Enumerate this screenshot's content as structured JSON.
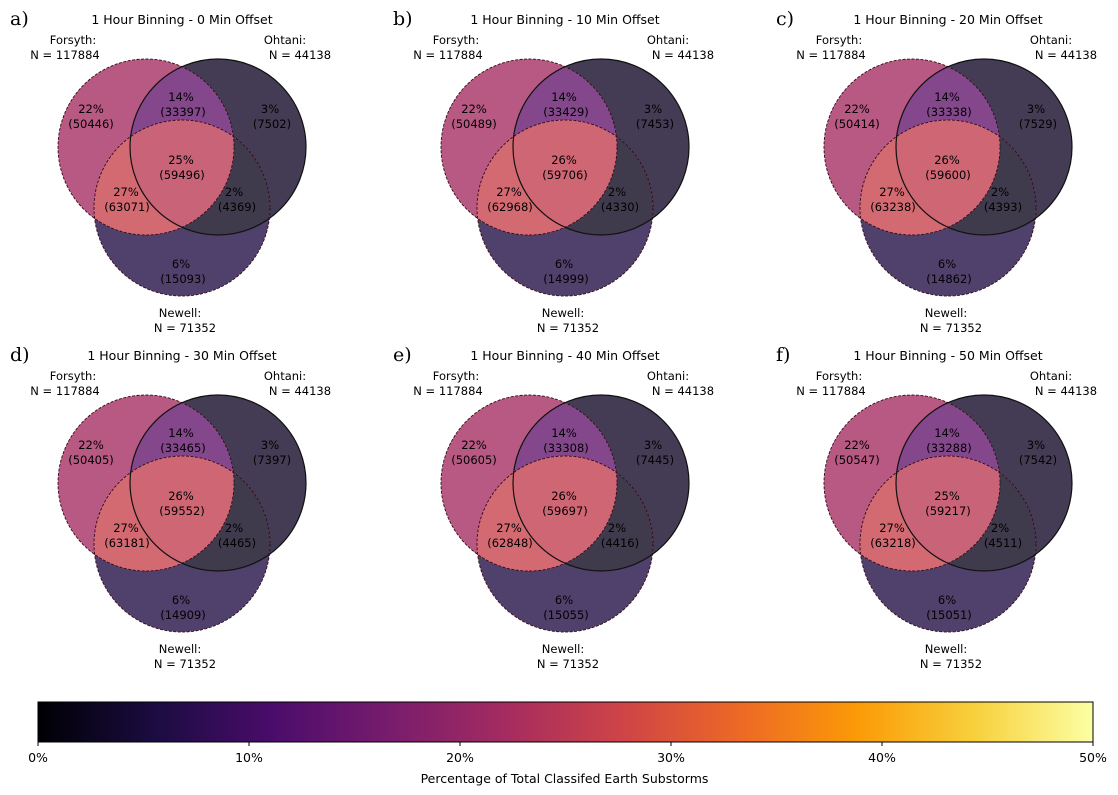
{
  "chart_data": {
    "type": "venn3",
    "panels": [
      {
        "letter": "a)",
        "title": "1 Hour Binning - 0 Min Offset",
        "sets": [
          {
            "name": "Forsyth:",
            "n_label": "N = 117884"
          },
          {
            "name": "Ohtani:",
            "n_label": "N = 44138"
          },
          {
            "name": "Newell:",
            "n_label": "N = 71352"
          }
        ],
        "regions": {
          "forsyth_only": {
            "pct": "22%",
            "count": "(50446)"
          },
          "ohtani_only": {
            "pct": "3%",
            "count": "(7502)"
          },
          "forsyth_ohtani": {
            "pct": "14%",
            "count": "(33397)"
          },
          "all_three": {
            "pct": "25%",
            "count": "(59496)"
          },
          "forsyth_newell": {
            "pct": "27%",
            "count": "(63071)"
          },
          "ohtani_newell": {
            "pct": "2%",
            "count": "(4369)"
          },
          "newell_only": {
            "pct": "6%",
            "count": "(15093)"
          }
        }
      },
      {
        "letter": "b)",
        "title": "1 Hour Binning - 10 Min Offset",
        "sets": [
          {
            "name": "Forsyth:",
            "n_label": "N = 117884"
          },
          {
            "name": "Ohtani:",
            "n_label": "N = 44138"
          },
          {
            "name": "Newell:",
            "n_label": "N = 71352"
          }
        ],
        "regions": {
          "forsyth_only": {
            "pct": "22%",
            "count": "(50489)"
          },
          "ohtani_only": {
            "pct": "3%",
            "count": "(7453)"
          },
          "forsyth_ohtani": {
            "pct": "14%",
            "count": "(33429)"
          },
          "all_three": {
            "pct": "26%",
            "count": "(59706)"
          },
          "forsyth_newell": {
            "pct": "27%",
            "count": "(62968)"
          },
          "ohtani_newell": {
            "pct": "2%",
            "count": "(4330)"
          },
          "newell_only": {
            "pct": "6%",
            "count": "(14999)"
          }
        }
      },
      {
        "letter": "c)",
        "title": "1 Hour Binning - 20 Min Offset",
        "sets": [
          {
            "name": "Forsyth:",
            "n_label": "N = 117884"
          },
          {
            "name": "Ohtani:",
            "n_label": "N = 44138"
          },
          {
            "name": "Newell:",
            "n_label": "N = 71352"
          }
        ],
        "regions": {
          "forsyth_only": {
            "pct": "22%",
            "count": "(50414)"
          },
          "ohtani_only": {
            "pct": "3%",
            "count": "(7529)"
          },
          "forsyth_ohtani": {
            "pct": "14%",
            "count": "(33338)"
          },
          "all_three": {
            "pct": "26%",
            "count": "(59600)"
          },
          "forsyth_newell": {
            "pct": "27%",
            "count": "(63238)"
          },
          "ohtani_newell": {
            "pct": "2%",
            "count": "(4393)"
          },
          "newell_only": {
            "pct": "6%",
            "count": "(14862)"
          }
        }
      },
      {
        "letter": "d)",
        "title": "1 Hour Binning - 30 Min Offset",
        "sets": [
          {
            "name": "Forsyth:",
            "n_label": "N = 117884"
          },
          {
            "name": "Ohtani:",
            "n_label": "N = 44138"
          },
          {
            "name": "Newell:",
            "n_label": "N = 71352"
          }
        ],
        "regions": {
          "forsyth_only": {
            "pct": "22%",
            "count": "(50405)"
          },
          "ohtani_only": {
            "pct": "3%",
            "count": "(7397)"
          },
          "forsyth_ohtani": {
            "pct": "14%",
            "count": "(33465)"
          },
          "all_three": {
            "pct": "26%",
            "count": "(59552)"
          },
          "forsyth_newell": {
            "pct": "27%",
            "count": "(63181)"
          },
          "ohtani_newell": {
            "pct": "2%",
            "count": "(4465)"
          },
          "newell_only": {
            "pct": "6%",
            "count": "(14909)"
          }
        }
      },
      {
        "letter": "e)",
        "title": "1 Hour Binning - 40 Min Offset",
        "sets": [
          {
            "name": "Forsyth:",
            "n_label": "N = 117884"
          },
          {
            "name": "Ohtani:",
            "n_label": "N = 44138"
          },
          {
            "name": "Newell:",
            "n_label": "N = 71352"
          }
        ],
        "regions": {
          "forsyth_only": {
            "pct": "22%",
            "count": "(50605)"
          },
          "ohtani_only": {
            "pct": "3%",
            "count": "(7445)"
          },
          "forsyth_ohtani": {
            "pct": "14%",
            "count": "(33308)"
          },
          "all_three": {
            "pct": "26%",
            "count": "(59697)"
          },
          "forsyth_newell": {
            "pct": "27%",
            "count": "(62848)"
          },
          "ohtani_newell": {
            "pct": "2%",
            "count": "(4416)"
          },
          "newell_only": {
            "pct": "6%",
            "count": "(15055)"
          }
        }
      },
      {
        "letter": "f)",
        "title": "1 Hour Binning - 50 Min Offset",
        "sets": [
          {
            "name": "Forsyth:",
            "n_label": "N = 117884"
          },
          {
            "name": "Ohtani:",
            "n_label": "N = 44138"
          },
          {
            "name": "Newell:",
            "n_label": "N = 71352"
          }
        ],
        "regions": {
          "forsyth_only": {
            "pct": "22%",
            "count": "(50547)"
          },
          "ohtani_only": {
            "pct": "3%",
            "count": "(7542)"
          },
          "forsyth_ohtani": {
            "pct": "14%",
            "count": "(33288)"
          },
          "all_three": {
            "pct": "25%",
            "count": "(59217)"
          },
          "forsyth_newell": {
            "pct": "27%",
            "count": "(63218)"
          },
          "ohtani_newell": {
            "pct": "2%",
            "count": "(4511)"
          },
          "newell_only": {
            "pct": "6%",
            "count": "(15051)"
          }
        }
      }
    ],
    "colorbar": {
      "colormap": "inferno",
      "range": [
        0,
        50
      ],
      "ticks": [
        "0%",
        "10%",
        "20%",
        "30%",
        "40%",
        "50%"
      ],
      "label": "Percentage of Total Classifed Earth Substorms"
    }
  },
  "colors": {
    "inferno_stops": [
      "#000004",
      "#1b0c41",
      "#4a0c6b",
      "#781c6d",
      "#a52c60",
      "#cf4446",
      "#ed6925",
      "#fb9b06",
      "#f7d13d",
      "#fcffa4"
    ]
  }
}
